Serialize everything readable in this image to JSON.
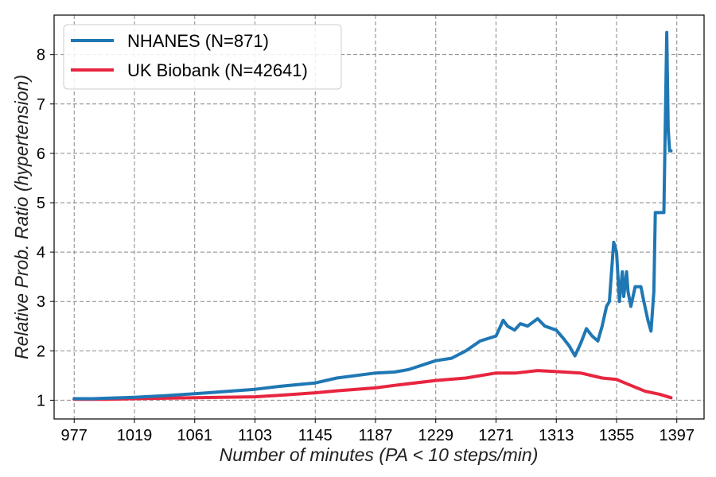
{
  "chart_data": {
    "type": "line",
    "title": "",
    "xlabel": "Number of minutes (PA < 10 steps/min)",
    "ylabel": "Relative Prob. Ratio (hypertension)",
    "xticks": [
      977,
      1019,
      1061,
      1103,
      1145,
      1187,
      1229,
      1271,
      1313,
      1355,
      1397
    ],
    "yticks": [
      1,
      2,
      3,
      4,
      5,
      6,
      7,
      8
    ],
    "xlim": [
      963,
      1416
    ],
    "ylim": [
      0.62,
      8.8
    ],
    "grid": true,
    "legend_position": "top-left",
    "series": [
      {
        "name": "NHANES (N=871)",
        "color": "#1f77b4",
        "x": [
          977,
          990,
          1000,
          1019,
          1040,
          1061,
          1080,
          1103,
          1120,
          1145,
          1160,
          1187,
          1200,
          1210,
          1229,
          1240,
          1250,
          1260,
          1271,
          1276,
          1279,
          1284,
          1288,
          1293,
          1300,
          1305,
          1313,
          1318,
          1322,
          1326,
          1330,
          1334,
          1338,
          1342,
          1345,
          1348,
          1350,
          1353,
          1355,
          1357,
          1359,
          1360,
          1362,
          1363,
          1365,
          1368,
          1372,
          1374,
          1377,
          1379,
          1381,
          1382,
          1385,
          1388,
          1390,
          1391,
          1392,
          1393
        ],
        "values": [
          1.03,
          1.03,
          1.04,
          1.06,
          1.09,
          1.13,
          1.17,
          1.22,
          1.28,
          1.35,
          1.45,
          1.55,
          1.57,
          1.62,
          1.8,
          1.85,
          2.0,
          2.2,
          2.3,
          2.62,
          2.5,
          2.42,
          2.55,
          2.5,
          2.65,
          2.5,
          2.42,
          2.25,
          2.1,
          1.9,
          2.15,
          2.45,
          2.3,
          2.2,
          2.5,
          2.9,
          3.0,
          4.2,
          4.0,
          3.0,
          3.6,
          3.1,
          3.6,
          3.2,
          2.9,
          3.3,
          3.3,
          3.0,
          2.6,
          2.4,
          3.2,
          4.8,
          4.8,
          4.8,
          8.45,
          6.5,
          6.05,
          6.05
        ]
      },
      {
        "name": "UK Biobank (N=42641)",
        "color": "#e8253f",
        "x": [
          977,
          1000,
          1019,
          1040,
          1061,
          1080,
          1103,
          1120,
          1145,
          1160,
          1187,
          1200,
          1229,
          1250,
          1271,
          1285,
          1300,
          1313,
          1330,
          1345,
          1355,
          1365,
          1375,
          1385,
          1393
        ],
        "values": [
          1.02,
          1.02,
          1.03,
          1.04,
          1.05,
          1.06,
          1.07,
          1.1,
          1.15,
          1.19,
          1.25,
          1.3,
          1.4,
          1.45,
          1.55,
          1.55,
          1.6,
          1.58,
          1.55,
          1.45,
          1.42,
          1.3,
          1.18,
          1.12,
          1.05
        ]
      }
    ]
  }
}
